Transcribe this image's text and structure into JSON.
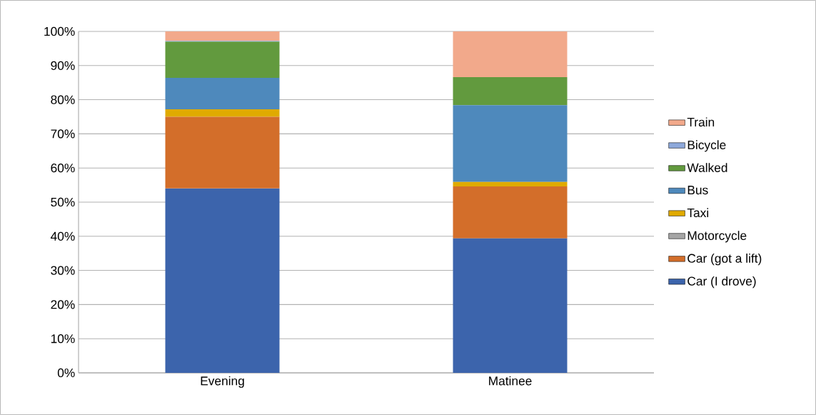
{
  "chart_data": {
    "type": "bar",
    "stacked": true,
    "categories": [
      "Evening",
      "Matinee"
    ],
    "series": [
      {
        "name": "Car (I drove)",
        "color": "#3c64ac",
        "values": [
          54.0,
          39.4
        ]
      },
      {
        "name": "Car (got a lift)",
        "color": "#d36e2a",
        "values": [
          21.0,
          15.2
        ]
      },
      {
        "name": "Motorcycle",
        "color": "#a5a5a5",
        "values": [
          0,
          0
        ]
      },
      {
        "name": "Taxi",
        "color": "#e0aa00",
        "values": [
          2.2,
          1.3
        ]
      },
      {
        "name": "Bus",
        "color": "#4e89bc",
        "values": [
          9.2,
          22.5
        ]
      },
      {
        "name": "Walked",
        "color": "#629a3e",
        "values": [
          10.6,
          8.2
        ]
      },
      {
        "name": "Bicycle",
        "color": "#8ea9db",
        "values": [
          0.2,
          0
        ]
      },
      {
        "name": "Train",
        "color": "#f2a98b",
        "values": [
          2.8,
          13.4
        ]
      }
    ],
    "ylim": [
      0,
      100
    ],
    "yticks": [
      {
        "value": 0,
        "label": "0%"
      },
      {
        "value": 10,
        "label": "10%"
      },
      {
        "value": 20,
        "label": "20%"
      },
      {
        "value": 30,
        "label": "30%"
      },
      {
        "value": 40,
        "label": "40%"
      },
      {
        "value": 50,
        "label": "50%"
      },
      {
        "value": 60,
        "label": "60%"
      },
      {
        "value": 70,
        "label": "70%"
      },
      {
        "value": 80,
        "label": "80%"
      },
      {
        "value": 90,
        "label": "90%"
      },
      {
        "value": 100,
        "label": "100%"
      }
    ],
    "grid": "y",
    "legend": "right"
  }
}
